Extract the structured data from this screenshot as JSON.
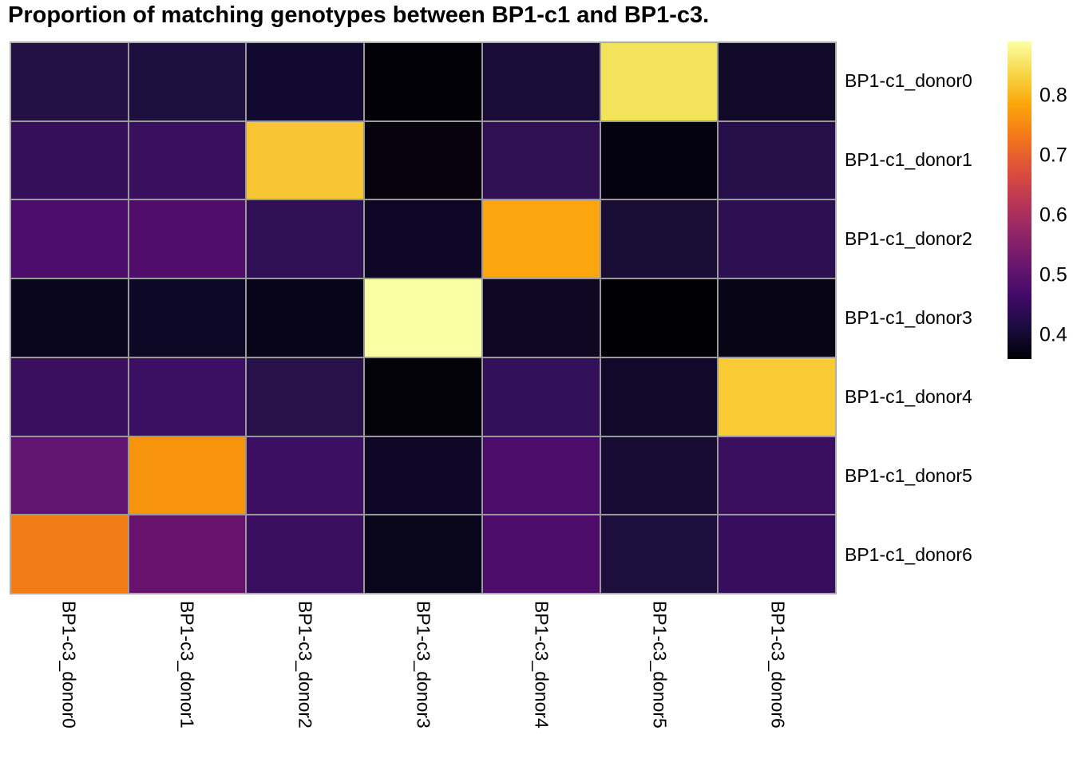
{
  "title": "Proportion of matching genotypes between BP1-c1 and BP1-c3.",
  "chart_data": {
    "type": "heatmap",
    "title": "Proportion of matching genotypes between BP1-c1 and BP1-c3.",
    "rows": [
      "BP1-c1_donor0",
      "BP1-c1_donor1",
      "BP1-c1_donor2",
      "BP1-c1_donor3",
      "BP1-c1_donor4",
      "BP1-c1_donor5",
      "BP1-c1_donor6"
    ],
    "columns": [
      "BP1-c3_donor0",
      "BP1-c3_donor1",
      "BP1-c3_donor2",
      "BP1-c3_donor3",
      "BP1-c3_donor4",
      "BP1-c3_donor5",
      "BP1-c3_donor6"
    ],
    "values": [
      [
        0.42,
        0.42,
        0.4,
        0.37,
        0.41,
        0.85,
        0.39
      ],
      [
        0.45,
        0.45,
        0.82,
        0.37,
        0.44,
        0.37,
        0.43
      ],
      [
        0.48,
        0.48,
        0.44,
        0.39,
        0.79,
        0.41,
        0.44
      ],
      [
        0.39,
        0.39,
        0.38,
        0.89,
        0.39,
        0.36,
        0.38
      ],
      [
        0.45,
        0.46,
        0.43,
        0.37,
        0.45,
        0.4,
        0.82
      ],
      [
        0.51,
        0.77,
        0.46,
        0.39,
        0.48,
        0.41,
        0.45
      ],
      [
        0.74,
        0.51,
        0.45,
        0.38,
        0.48,
        0.42,
        0.45
      ]
    ],
    "cell_colors": [
      [
        "#221142",
        "#1e103e",
        "#110930",
        "#030108",
        "#190d38",
        "#f2e25c",
        "#100a28"
      ],
      [
        "#360f5b",
        "#38105e",
        "#f8c632",
        "#06030f",
        "#2f1053",
        "#050210",
        "#27104a"
      ],
      [
        "#4c0c6b",
        "#500d6c",
        "#301055",
        "#0d0725",
        "#fba60f",
        "#190d36",
        "#2d1051"
      ],
      [
        "#0b0620",
        "#0e0827",
        "#090519",
        "#fbffa4",
        "#0d0723",
        "#010005",
        "#080517"
      ],
      [
        "#390f5e",
        "#3b0f62",
        "#281049",
        "#03010a",
        "#33105a",
        "#110929",
        "#f9cb35"
      ],
      [
        "#621570",
        "#f8940c",
        "#3c0f63",
        "#0d0725",
        "#4b0d69",
        "#180c34",
        "#3a0f60"
      ],
      [
        "#f07d17",
        "#67136e",
        "#3b0f60",
        "#09051b",
        "#4e0c6b",
        "#1e0e3e",
        "#370e5d"
      ]
    ],
    "colorbar": {
      "ticks": [
        "0.8",
        "0.7",
        "0.6",
        "0.5",
        "0.4"
      ],
      "tick_values": [
        0.8,
        0.7,
        0.6,
        0.5,
        0.4
      ],
      "vmin": 0.36,
      "vmax": 0.891,
      "colormap": "inferno",
      "position": "right",
      "gradient_stops": [
        "#fcffa4",
        "#f6d746",
        "#fca50a",
        "#f37819",
        "#dd513a",
        "#bc3754",
        "#932667",
        "#6a176e",
        "#420a68",
        "#1b0c41",
        "#000004"
      ]
    },
    "grid_color": "#999999",
    "xlabel": "",
    "ylabel": ""
  }
}
